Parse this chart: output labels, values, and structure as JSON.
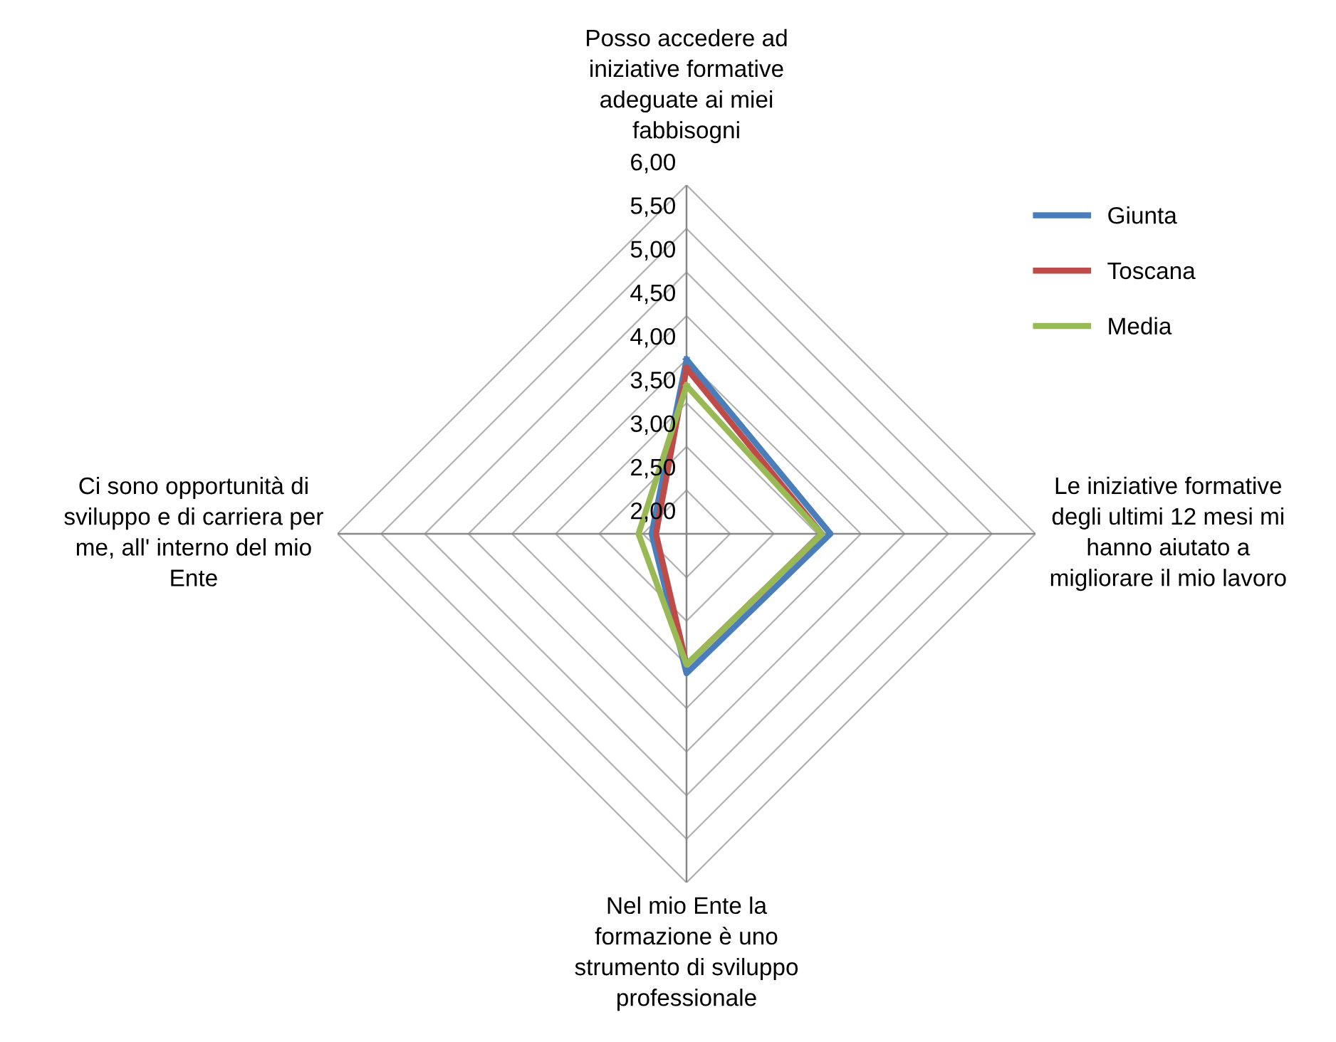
{
  "chart_data": {
    "type": "radar",
    "categories": [
      "Posso accedere ad\niniziative formative\nadeguate ai miei\nfabbisogni",
      "Le iniziative formative\ndegli ultimi 12 mesi mi\nhanno aiutato a\nmigliorare il mio lavoro",
      "Nel mio Ente la\nformazione è uno\nstrumento di sviluppo\nprofessionale",
      "Ci sono opportunità di\nsviluppo e di carriera per\nme, all' interno del mio\nEnte"
    ],
    "series": [
      {
        "name": "Giunta",
        "color": "#4a7ebb",
        "values": [
          4.0,
          3.65,
          3.6,
          2.4
        ]
      },
      {
        "name": "Toscana",
        "color": "#be4b48",
        "values": [
          3.9,
          3.55,
          3.5,
          2.35
        ]
      },
      {
        "name": "Media",
        "color": "#98b954",
        "values": [
          3.7,
          3.55,
          3.5,
          2.55
        ]
      }
    ],
    "ylim": [
      2,
      6
    ],
    "yticks": [
      {
        "value": 2,
        "label": "2,00"
      },
      {
        "value": 2.5,
        "label": "2,50"
      },
      {
        "value": 3,
        "label": "3,00"
      },
      {
        "value": 3.5,
        "label": "3,50"
      },
      {
        "value": 4,
        "label": "4,00"
      },
      {
        "value": 4.5,
        "label": "4,50"
      },
      {
        "value": 5,
        "label": "5,00"
      },
      {
        "value": 5.5,
        "label": "5,50"
      },
      {
        "value": 6,
        "label": "6,00"
      }
    ],
    "grid": true,
    "legend": "top right",
    "marker": "none",
    "line_style": "solid"
  }
}
